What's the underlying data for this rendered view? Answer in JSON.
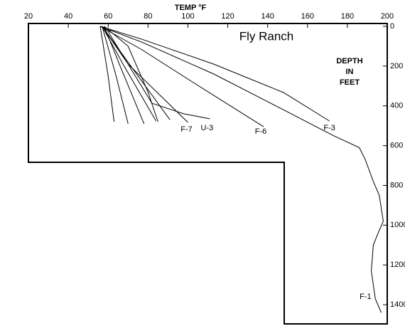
{
  "chart_data": {
    "type": "line",
    "title": "Fly Ranch",
    "xlabel": "TEMP °F",
    "ylabel": [
      "DEPTH",
      "IN",
      "FEET"
    ],
    "xlim": [
      20,
      200
    ],
    "ylim": [
      0,
      1500
    ],
    "xticks": [
      20,
      40,
      60,
      80,
      100,
      120,
      140,
      160,
      180,
      200
    ],
    "yticks": [
      0,
      200,
      400,
      600,
      800,
      1000,
      1200,
      1400
    ],
    "y_inverted": true,
    "color": "#000000",
    "series": [
      {
        "name": "F-1",
        "x": [
          56,
          77,
          113,
          148,
          173,
          186,
          189,
          193,
          196,
          198,
          195,
          193,
          192,
          194,
          197
        ],
        "values": [
          0,
          80,
          240,
          420,
          550,
          610,
          670,
          780,
          850,
          980,
          1050,
          1100,
          1230,
          1370,
          1440
        ]
      },
      {
        "name": "F-3",
        "x": [
          56,
          77,
          113,
          148,
          171
        ],
        "values": [
          0,
          65,
          190,
          333,
          476
        ]
      },
      {
        "name": "F-6",
        "x": [
          56,
          77,
          105,
          138
        ],
        "values": [
          0,
          118,
          297,
          505
        ]
      },
      {
        "name": "U-3",
        "x": [
          59,
          82,
          98,
          111
        ],
        "values": [
          10,
          387,
          440,
          465
        ]
      },
      {
        "name": "F-7",
        "x": [
          57,
          70,
          100
        ],
        "values": [
          0,
          190,
          483
        ]
      },
      {
        "x": [
          57,
          68,
          84
        ],
        "values": [
          0,
          200,
          476
        ]
      },
      {
        "x": [
          57,
          75,
          91
        ],
        "values": [
          0,
          250,
          470
        ]
      },
      {
        "x": [
          56,
          60,
          63
        ],
        "values": [
          0,
          250,
          480
        ]
      },
      {
        "x": [
          57,
          64,
          70
        ],
        "values": [
          0,
          250,
          490
        ]
      },
      {
        "x": [
          58,
          66,
          78
        ],
        "values": [
          0,
          200,
          490
        ]
      },
      {
        "x": [
          58,
          70,
          80,
          85
        ],
        "values": [
          0,
          100,
          330,
          480
        ]
      }
    ]
  }
}
